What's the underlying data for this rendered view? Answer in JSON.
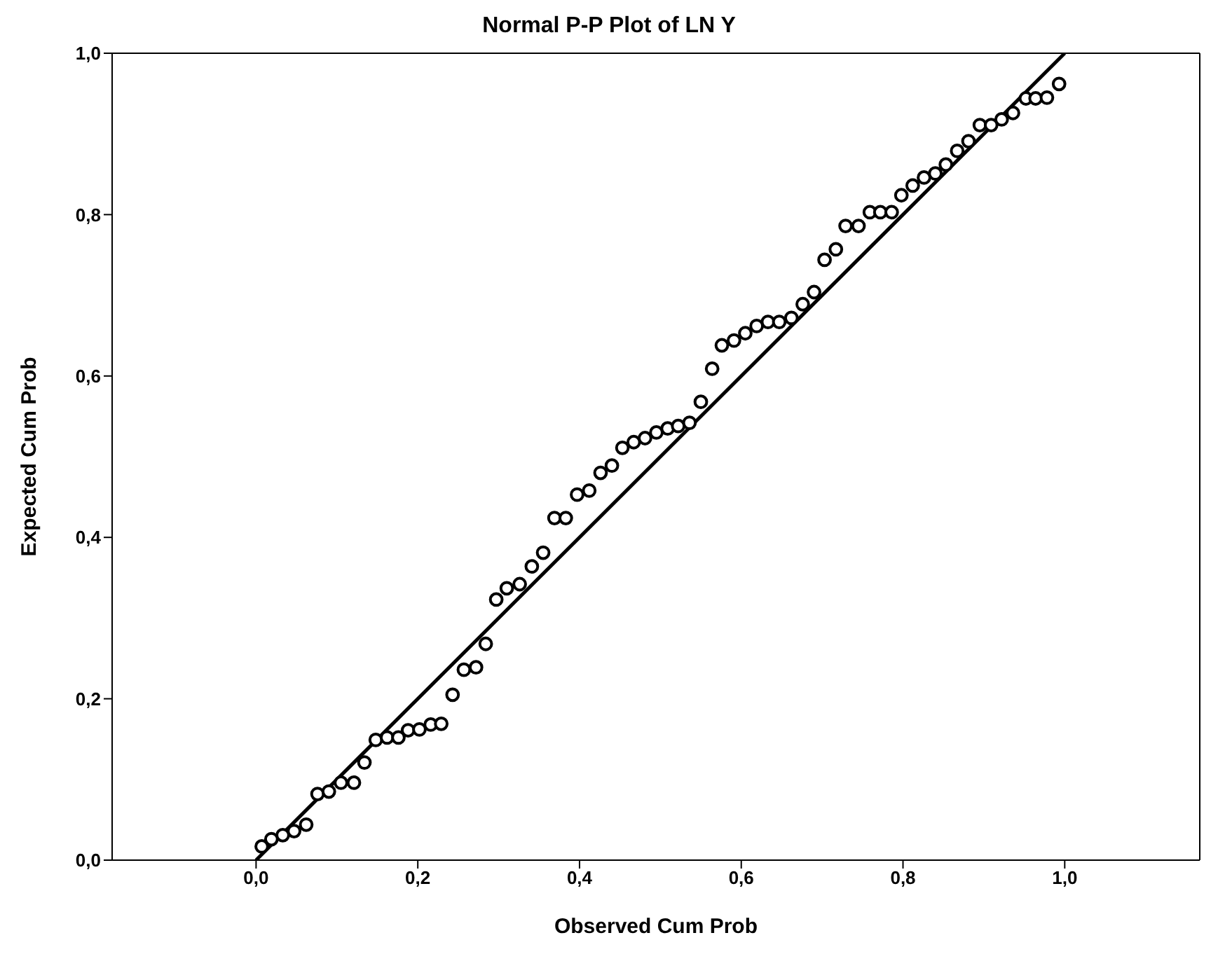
{
  "chart_data": {
    "type": "scatter",
    "title": "Normal P-P Plot of LN Y",
    "xlabel": "Observed Cum Prob",
    "ylabel": "Expected Cum Prob",
    "xlim": [
      -0.178,
      1.167
    ],
    "ylim": [
      0,
      1
    ],
    "xticks": [
      {
        "value": 0,
        "label": "0,0"
      },
      {
        "value": 0.2,
        "label": "0,2"
      },
      {
        "value": 0.4,
        "label": "0,4"
      },
      {
        "value": 0.6,
        "label": "0,6"
      },
      {
        "value": 0.8,
        "label": "0,8"
      },
      {
        "value": 1,
        "label": "1,0"
      }
    ],
    "yticks": [
      {
        "value": 0,
        "label": "0,0"
      },
      {
        "value": 0.2,
        "label": "0,2"
      },
      {
        "value": 0.4,
        "label": "0,4"
      },
      {
        "value": 0.6,
        "label": "0,6"
      },
      {
        "value": 0.8,
        "label": "0,8"
      },
      {
        "value": 1,
        "label": "1,0"
      }
    ],
    "grid": false,
    "legend": false,
    "marker": "circle",
    "series": [
      {
        "color": "#000000",
        "x": [
          0.007,
          0.019,
          0.033,
          0.047,
          0.062,
          0.076,
          0.09,
          0.105,
          0.121,
          0.134,
          0.148,
          0.162,
          0.176,
          0.188,
          0.202,
          0.216,
          0.229,
          0.243,
          0.257,
          0.272,
          0.284,
          0.297,
          0.31,
          0.326,
          0.341,
          0.355,
          0.369,
          0.383,
          0.397,
          0.412,
          0.426,
          0.44,
          0.453,
          0.467,
          0.481,
          0.495,
          0.509,
          0.522,
          0.536,
          0.55,
          0.564,
          0.576,
          0.591,
          0.605,
          0.619,
          0.633,
          0.647,
          0.662,
          0.676,
          0.69,
          0.703,
          0.717,
          0.729,
          0.745,
          0.759,
          0.772,
          0.786,
          0.798,
          0.812,
          0.826,
          0.84,
          0.853,
          0.867,
          0.881,
          0.895,
          0.909,
          0.922,
          0.936,
          0.952,
          0.964,
          0.978,
          0.993
        ],
        "values": [
          0.017,
          0.026,
          0.031,
          0.036,
          0.044,
          0.082,
          0.085,
          0.096,
          0.096,
          0.121,
          0.149,
          0.152,
          0.152,
          0.161,
          0.162,
          0.168,
          0.169,
          0.205,
          0.236,
          0.239,
          0.268,
          0.323,
          0.337,
          0.342,
          0.364,
          0.381,
          0.424,
          0.424,
          0.453,
          0.458,
          0.48,
          0.489,
          0.511,
          0.518,
          0.523,
          0.53,
          0.535,
          0.538,
          0.542,
          0.568,
          0.609,
          0.638,
          0.644,
          0.653,
          0.662,
          0.667,
          0.667,
          0.672,
          0.689,
          0.704,
          0.744,
          0.757,
          0.786,
          0.786,
          0.803,
          0.803,
          0.803,
          0.824,
          0.836,
          0.846,
          0.851,
          0.862,
          0.879,
          0.891,
          0.911,
          0.911,
          0.918,
          0.926,
          0.944,
          0.944,
          0.945,
          0.962
        ]
      },
      {
        "type": "line",
        "color": "#000000",
        "x": [
          0,
          1
        ],
        "values": [
          0,
          1
        ],
        "marker": "none",
        "line_style": "solid"
      }
    ]
  }
}
